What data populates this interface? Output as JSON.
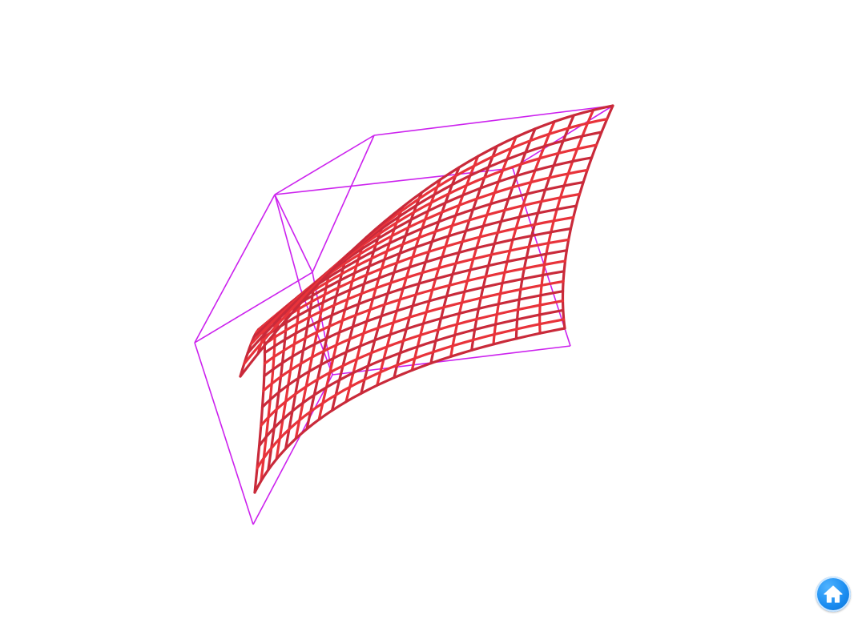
{
  "scene": {
    "surface_color": "#e8333a",
    "surface_shade_color": "#c92a3a",
    "cage_color": "#cc22ee",
    "background": "#ffffff",
    "grid_divisions_u": 20,
    "grid_divisions_v": 20
  },
  "controls": {
    "home_icon": "home-icon",
    "home_color": "#1a8cf0"
  }
}
